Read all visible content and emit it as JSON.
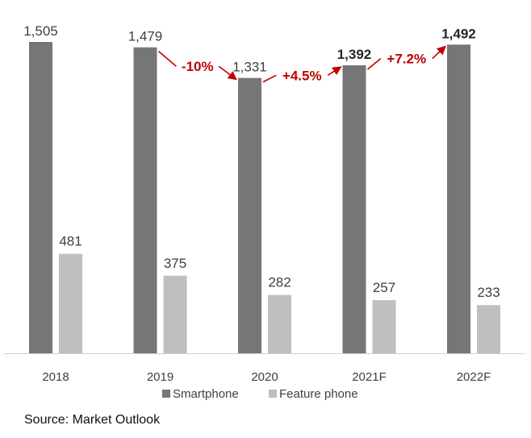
{
  "chart_data": {
    "type": "bar",
    "categories": [
      "2018",
      "2019",
      "2020",
      "2021F",
      "2022F"
    ],
    "series": [
      {
        "name": "Smartphone",
        "values": [
          1505,
          1479,
          1331,
          1392,
          1492
        ],
        "labels": [
          "1,505",
          "1,479",
          "1,331",
          "1,392",
          "1,492"
        ],
        "bold": [
          false,
          false,
          false,
          true,
          true
        ],
        "color": "#767676"
      },
      {
        "name": "Feature phone",
        "values": [
          481,
          375,
          282,
          257,
          233
        ],
        "labels": [
          "481",
          "375",
          "282",
          "257",
          "233"
        ],
        "color": "#bfbfbf"
      }
    ],
    "annotations": [
      {
        "from": "2019",
        "to": "2020",
        "text": "-10%"
      },
      {
        "from": "2020",
        "to": "2021F",
        "text": "+4.5%"
      },
      {
        "from": "2021F",
        "to": "2022F",
        "text": "+7.2%"
      }
    ],
    "annotation_color": "#c00000",
    "ylim": [
      0,
      1505
    ],
    "title": "",
    "xlabel": "",
    "ylabel": "",
    "grid": false,
    "legend": "bottom-center"
  },
  "source": "Source: Market Outlook"
}
